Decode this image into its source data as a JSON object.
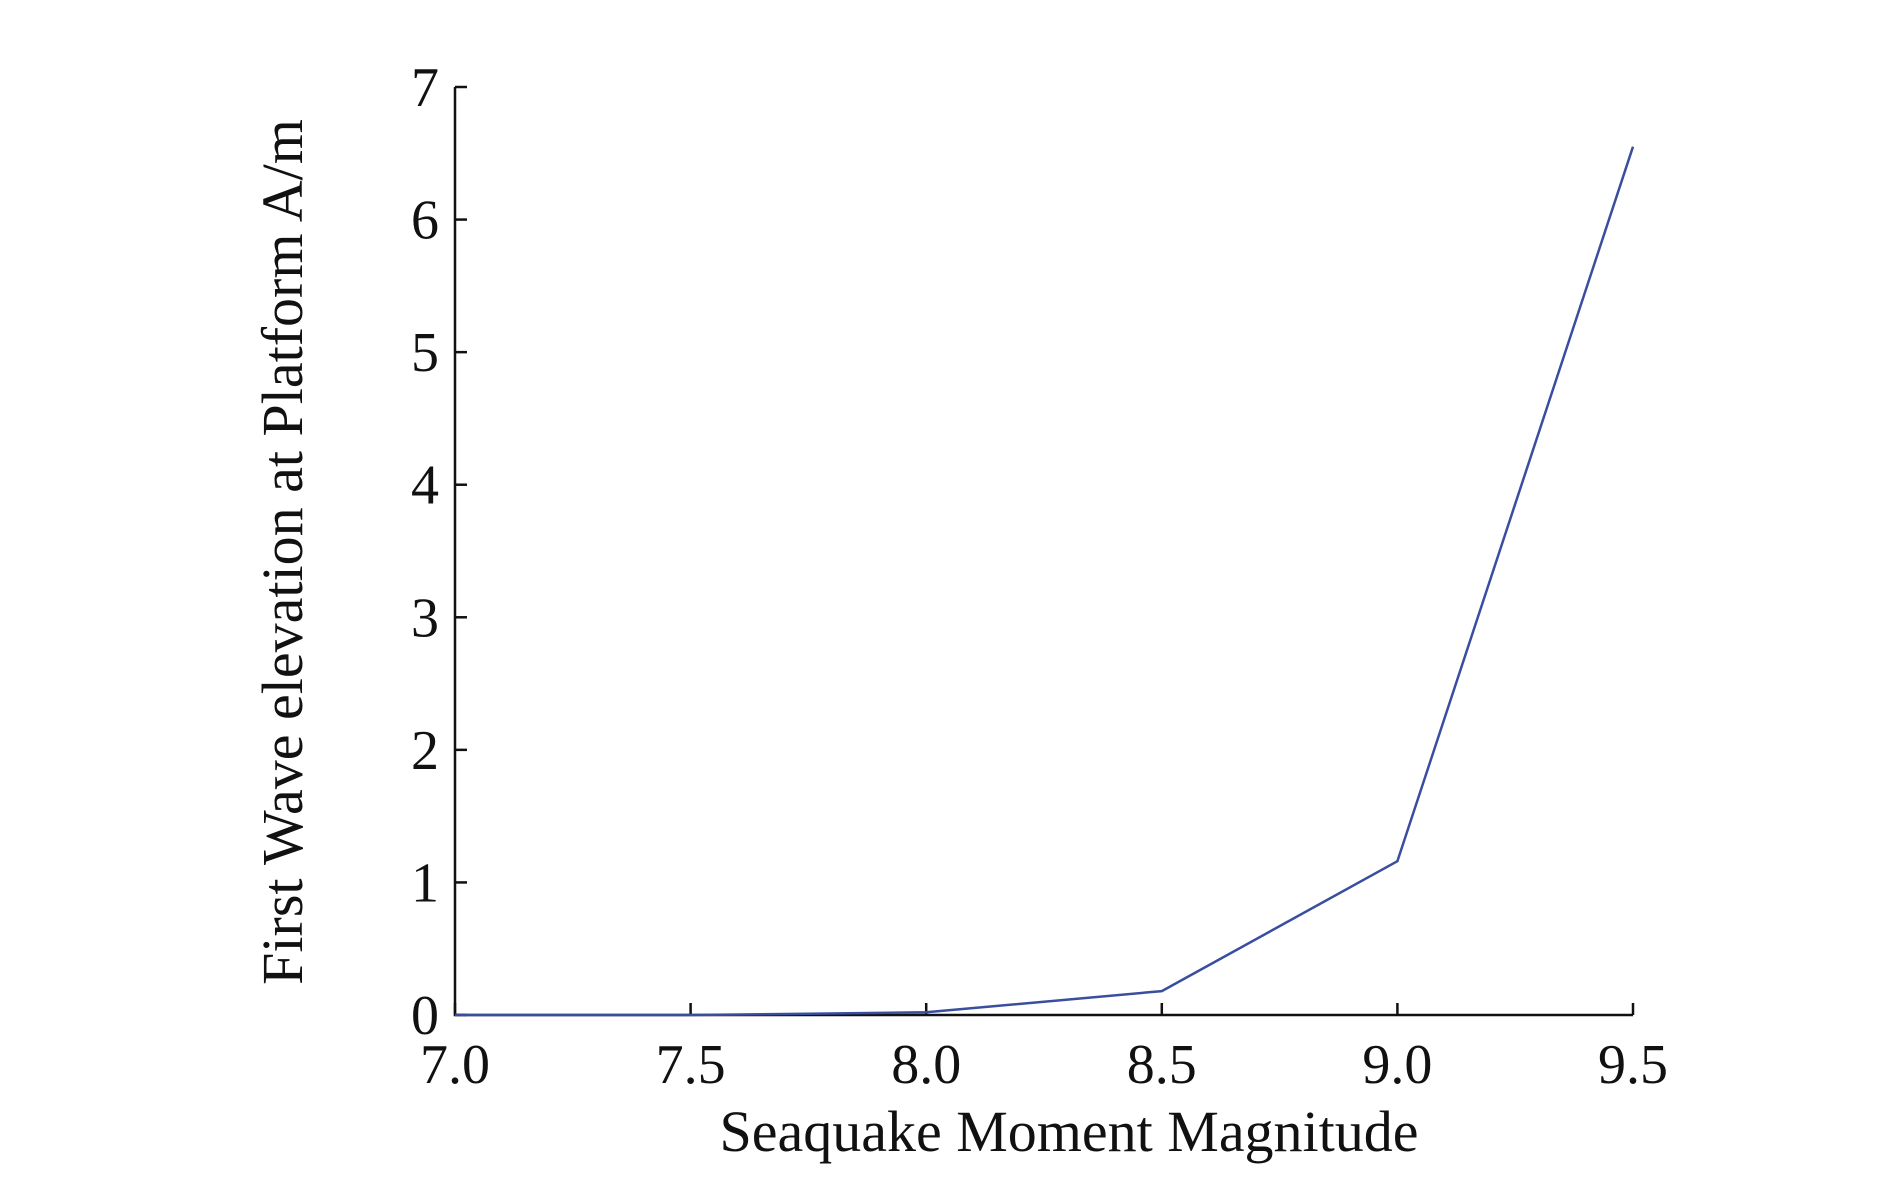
{
  "chart_data": {
    "type": "line",
    "title": "",
    "xlabel": "Seaquake Moment Magnitude",
    "ylabel": "First Wave elevation at Platform A/m",
    "xlim": [
      7.0,
      9.5
    ],
    "ylim": [
      0,
      7
    ],
    "x_ticks": [
      "7.0",
      "7.5",
      "8.0",
      "8.5",
      "9.0",
      "9.5"
    ],
    "x_tick_values": [
      7.0,
      7.5,
      8.0,
      8.5,
      9.0,
      9.5
    ],
    "y_ticks": [
      "0",
      "1",
      "2",
      "3",
      "4",
      "5",
      "6",
      "7"
    ],
    "y_tick_values": [
      0,
      1,
      2,
      3,
      4,
      5,
      6,
      7
    ],
    "grid": false,
    "legend": "none",
    "series": [
      {
        "color": "#3a4ea0",
        "x": [
          7.0,
          7.25,
          7.5,
          7.75,
          8.0,
          8.5,
          9.0,
          9.5
        ],
        "y": [
          0.0,
          0.0,
          0.0,
          0.01,
          0.02,
          0.18,
          1.16,
          6.55
        ]
      }
    ]
  }
}
